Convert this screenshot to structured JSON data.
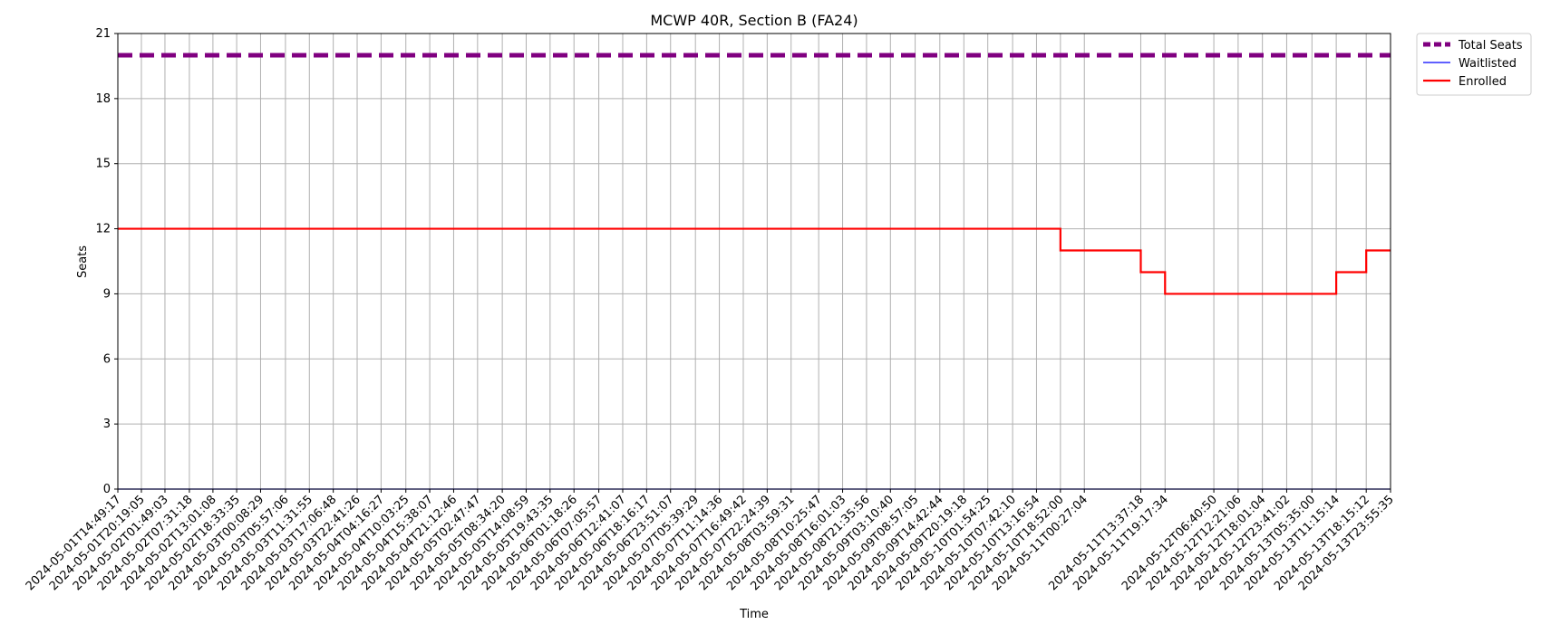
{
  "chart_data": {
    "type": "line",
    "title": "MCWP 40R, Section B (FA24)",
    "xlabel": "Time",
    "ylabel": "Seats",
    "ylim": [
      0,
      21
    ],
    "yticks": [
      0,
      3,
      6,
      9,
      12,
      15,
      18,
      21
    ],
    "grid": true,
    "legend_position": "outside-top-right",
    "x_tick_labels": [
      "2024-05-01T14:49:17",
      "2024-05-01T20:19:05",
      "2024-05-02T01:49:03",
      "2024-05-02T07:31:18",
      "2024-05-02T13:01:08",
      "2024-05-02T18:33:35",
      "2024-05-03T00:08:29",
      "2024-05-03T05:57:06",
      "2024-05-03T11:31:55",
      "2024-05-03T17:06:48",
      "2024-05-03T22:41:26",
      "2024-05-04T04:16:27",
      "2024-05-04T10:03:25",
      "2024-05-04T15:38:07",
      "2024-05-04T21:12:46",
      "2024-05-05T02:47:47",
      "2024-05-05T08:34:20",
      "2024-05-05T14:08:59",
      "2024-05-05T19:43:35",
      "2024-05-06T01:18:26",
      "2024-05-06T07:05:57",
      "2024-05-06T12:41:07",
      "2024-05-06T18:16:17",
      "2024-05-06T23:51:07",
      "2024-05-07T05:39:29",
      "2024-05-07T11:14:36",
      "2024-05-07T16:49:42",
      "2024-05-07T22:24:39",
      "2024-05-08T03:59:31",
      "2024-05-08T10:25:47",
      "2024-05-08T16:01:03",
      "2024-05-08T21:35:56",
      "2024-05-09T03:10:40",
      "2024-05-09T08:57:05",
      "2024-05-09T14:42:44",
      "2024-05-09T20:19:18",
      "2024-05-10T01:54:25",
      "2024-05-10T07:42:10",
      "2024-05-10T13:16:54",
      "2024-05-10T18:52:00",
      "2024-05-11T00:27:04",
      "2024-05-11T13:37:18",
      "2024-05-11T19:17:34",
      "2024-05-12T06:40:50",
      "2024-05-12T12:21:06",
      "2024-05-12T18:01:04",
      "2024-05-12T23:41:02",
      "2024-05-13T05:35:00",
      "2024-05-13T11:15:14",
      "2024-05-13T18:15:12",
      "2024-05-13T23:55:35"
    ],
    "series": [
      {
        "name": "Total Seats",
        "color": "#800080",
        "style": "dashed",
        "steps": [
          {
            "from": "2024-05-01T14:49:17",
            "value": 20
          }
        ]
      },
      {
        "name": "Waitlisted",
        "color": "#0000ff",
        "style": "solid",
        "steps": [
          {
            "from": "2024-05-01T14:49:17",
            "value": 0
          }
        ]
      },
      {
        "name": "Enrolled",
        "color": "#ff0000",
        "style": "solid",
        "steps": [
          {
            "from": "2024-05-01T14:49:17",
            "value": 12
          },
          {
            "from": "2024-05-10T18:52:00",
            "value": 11
          },
          {
            "from": "2024-05-11T13:37:18",
            "value": 10
          },
          {
            "from": "2024-05-11T19:17:34",
            "value": 9
          },
          {
            "from": "2024-05-13T11:15:14",
            "value": 10
          },
          {
            "from": "2024-05-13T18:15:12",
            "value": 11
          }
        ]
      }
    ]
  }
}
